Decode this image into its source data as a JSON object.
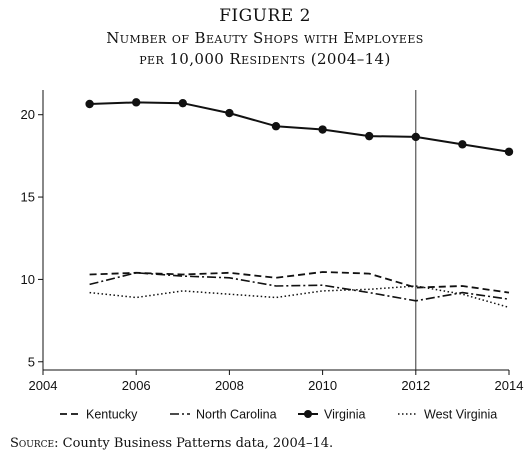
{
  "figure_label": "FIGURE 2",
  "title_line1": "Number of Beauty Shops with Employees",
  "title_line2": "per 10,000 Residents (2004–14)",
  "source_label": "Source:",
  "source_text": "County Business Patterns data, 2004–14.",
  "chart_data": {
    "type": "line",
    "x": [
      2005,
      2006,
      2007,
      2008,
      2009,
      2010,
      2011,
      2012,
      2013,
      2014
    ],
    "xlim": [
      2004,
      2014
    ],
    "ylim": [
      4.5,
      21.5
    ],
    "xticks": [
      2004,
      2006,
      2008,
      2010,
      2012,
      2014
    ],
    "yticks": [
      5,
      10,
      15,
      20
    ],
    "reference_line_x": 2012,
    "legend_position": "bottom",
    "series": [
      {
        "name": "Kentucky",
        "style": "dashed",
        "values": [
          10.3,
          10.4,
          10.3,
          10.4,
          10.1,
          10.45,
          10.35,
          9.5,
          9.6,
          9.2
        ]
      },
      {
        "name": "North Carolina",
        "style": "dash-dot",
        "values": [
          9.7,
          10.4,
          10.2,
          10.1,
          9.6,
          9.65,
          9.2,
          8.7,
          9.2,
          8.8
        ]
      },
      {
        "name": "Virginia",
        "style": "solid-markers",
        "values": [
          20.65,
          20.75,
          20.7,
          20.1,
          19.3,
          19.1,
          18.7,
          18.65,
          18.2,
          17.75
        ]
      },
      {
        "name": "West Virginia",
        "style": "dotted",
        "values": [
          9.2,
          8.9,
          9.3,
          9.1,
          8.9,
          9.3,
          9.4,
          9.6,
          9.1,
          8.3
        ]
      }
    ]
  }
}
